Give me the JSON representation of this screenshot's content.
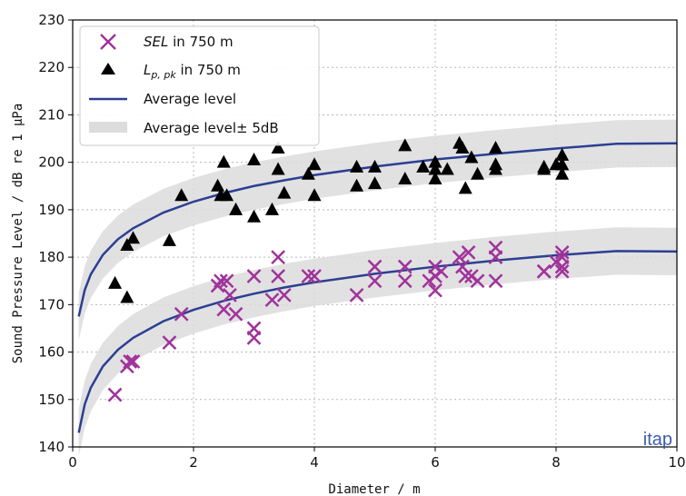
{
  "chart_data": {
    "type": "scatter",
    "xlabel": "Diameter / m",
    "ylabel": "Sound Pressure Level / dB re 1 µPa",
    "xlim": [
      0,
      10
    ],
    "ylim": [
      140,
      230
    ],
    "xticks": [
      "0",
      "2",
      "4",
      "6",
      "8",
      "10"
    ],
    "yticks": [
      "140",
      "150",
      "160",
      "170",
      "180",
      "190",
      "200",
      "210",
      "220",
      "230"
    ],
    "grid": "dotted",
    "legend_position": "top-left",
    "watermark": "itap",
    "colors": {
      "sel": "#a0339b",
      "lppk": "#000000",
      "average": "#2b3f93",
      "band": "#dcdcdc",
      "brand": "#3d5dab"
    },
    "legend": {
      "sel": {
        "italic": "SEL",
        "rest": " in 750 m"
      },
      "lppk": {
        "main": "L",
        "sub": "p, pk",
        "rest": " in 750 m"
      },
      "average": "Average level",
      "band": "Average level± 5dB"
    },
    "series": [
      {
        "name": "SEL in 750 m",
        "marker": "x",
        "x": [
          0.7,
          0.9,
          0.95,
          1.0,
          1.6,
          1.8,
          2.4,
          2.45,
          2.5,
          2.55,
          2.6,
          2.7,
          3.0,
          3.0,
          3.0,
          3.3,
          3.4,
          3.4,
          3.5,
          3.9,
          4.0,
          4.7,
          5.0,
          5.0,
          5.5,
          5.5,
          5.9,
          6.0,
          6.0,
          6.0,
          6.1,
          6.4,
          6.45,
          6.5,
          6.55,
          6.6,
          6.7,
          7.0,
          7.0,
          7.0,
          7.8,
          7.8,
          8.0,
          8.1,
          8.1,
          8.1,
          8.1
        ],
        "y": [
          151,
          157,
          158,
          158,
          162,
          168,
          174,
          175,
          169,
          175,
          172,
          168,
          176,
          165,
          163,
          171,
          180,
          176,
          172,
          176,
          176,
          172,
          178,
          175,
          178,
          175,
          175,
          173,
          178,
          176,
          177,
          180,
          178,
          176,
          181,
          176,
          175,
          182,
          180,
          175,
          177,
          177,
          179,
          181,
          180,
          178,
          177
        ]
      },
      {
        "name": "Lp,pk in 750 m",
        "marker": "triangle",
        "x": [
          0.7,
          0.9,
          0.9,
          1.0,
          1.6,
          1.8,
          2.4,
          2.45,
          2.5,
          2.55,
          2.7,
          3.0,
          3.0,
          3.3,
          3.4,
          3.4,
          3.5,
          3.9,
          4.0,
          4.0,
          4.7,
          4.7,
          5.0,
          5.0,
          5.5,
          5.5,
          5.8,
          6.0,
          6.0,
          6.0,
          6.2,
          6.4,
          6.45,
          6.5,
          6.6,
          6.7,
          7.0,
          7.0,
          7.0,
          7.8,
          7.8,
          8.0,
          8.1,
          8.1,
          8.1,
          8.1
        ],
        "y": [
          174.5,
          171.5,
          182.5,
          184,
          183.5,
          193,
          195,
          193,
          200,
          193,
          190,
          200.5,
          188.5,
          190,
          203,
          198.5,
          193.5,
          197.5,
          199.5,
          193,
          199,
          195,
          199,
          195.5,
          203.5,
          196.5,
          199,
          200,
          196.5,
          198.5,
          198.5,
          204,
          203,
          194.5,
          201,
          197.5,
          203,
          198.5,
          199.5,
          198.5,
          199,
          199.5,
          201.5,
          199.5,
          199.5,
          197.5
        ]
      },
      {
        "name": "Average level",
        "type": "line",
        "x": [
          0.1,
          0.2,
          0.3,
          0.5,
          0.75,
          1,
          1.5,
          2,
          2.5,
          3,
          3.5,
          4,
          5,
          6,
          7,
          8,
          9,
          10
        ],
        "y_upper_curve": [
          167.5,
          173.1,
          176.4,
          180.5,
          183.8,
          186.1,
          189.4,
          191.7,
          193.5,
          195.0,
          196.2,
          197.3,
          199.1,
          200.6,
          201.8,
          202.9,
          203.9,
          204.0
        ],
        "y_lower_curve": [
          143.0,
          149.0,
          152.5,
          157.0,
          160.5,
          163.0,
          166.5,
          168.9,
          170.8,
          172.3,
          173.6,
          174.7,
          176.5,
          178.0,
          179.3,
          180.4,
          181.3,
          181.2
        ]
      },
      {
        "name": "Average level± 5dB",
        "type": "band",
        "offset": 5
      }
    ]
  }
}
